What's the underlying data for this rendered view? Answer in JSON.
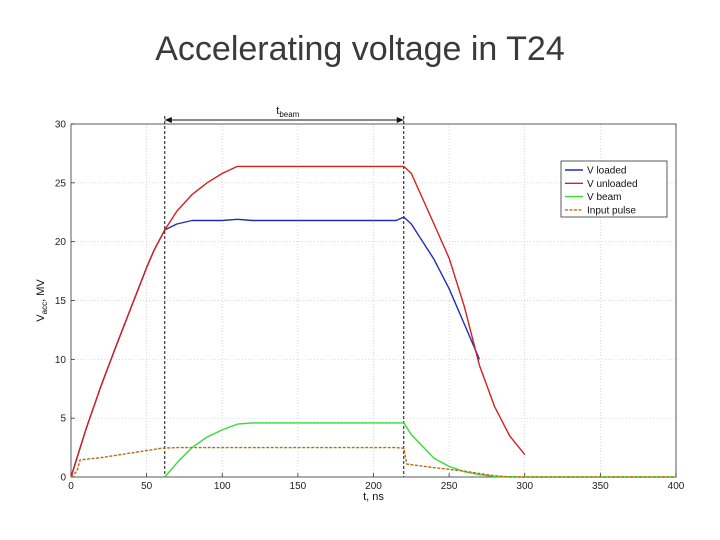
{
  "slide": {
    "title": "Accelerating voltage in T24"
  },
  "chart_data": {
    "type": "line",
    "xlabel": "t, ns",
    "ylabel": {
      "main": "V",
      "sub": "acc",
      "rest": ", MV"
    },
    "xlim": [
      0,
      400
    ],
    "ylim": [
      0,
      30
    ],
    "xticks": [
      0,
      50,
      100,
      150,
      200,
      250,
      300,
      350,
      400
    ],
    "yticks": [
      0,
      5,
      10,
      15,
      20,
      25,
      30
    ],
    "grid": true,
    "legend_position": "top-right",
    "beam_window": {
      "start": 62,
      "end": 220,
      "label": {
        "main": "t",
        "sub": "beam"
      }
    },
    "series": [
      {
        "name": "V loaded",
        "color": "#1f2fb5",
        "x": [
          0,
          10,
          20,
          30,
          40,
          50,
          55,
          62,
          70,
          80,
          100,
          110,
          120,
          150,
          200,
          215,
          220,
          225,
          240,
          250,
          260,
          270
        ],
        "y": [
          0,
          4.1,
          7.8,
          11.2,
          14.5,
          17.8,
          19.3,
          21.0,
          21.5,
          21.8,
          21.8,
          21.9,
          21.8,
          21.8,
          21.8,
          21.8,
          22.1,
          21.5,
          18.5,
          16.0,
          13.0,
          10.0
        ]
      },
      {
        "name": "V unloaded",
        "color": "#d42020",
        "x": [
          0,
          10,
          20,
          30,
          40,
          50,
          55,
          62,
          70,
          80,
          90,
          100,
          110,
          120,
          150,
          200,
          215,
          220,
          225,
          240,
          250,
          260,
          270,
          280,
          290,
          300
        ],
        "y": [
          0,
          4.1,
          7.8,
          11.2,
          14.5,
          17.8,
          19.3,
          21.0,
          22.6,
          24.0,
          25.0,
          25.8,
          26.4,
          26.4,
          26.4,
          26.4,
          26.4,
          26.4,
          25.8,
          21.5,
          18.6,
          14.5,
          9.5,
          6.0,
          3.5,
          1.9
        ]
      },
      {
        "name": "V beam",
        "color": "#33dd33",
        "x": [
          62,
          70,
          80,
          90,
          100,
          110,
          120,
          150,
          200,
          215,
          220,
          225,
          240,
          250,
          260,
          270,
          280,
          300,
          400
        ],
        "y": [
          0,
          1.2,
          2.5,
          3.4,
          4.0,
          4.5,
          4.6,
          4.6,
          4.6,
          4.6,
          4.6,
          3.6,
          1.6,
          0.9,
          0.45,
          0.2,
          0.05,
          0,
          0
        ]
      },
      {
        "name": "Input pulse",
        "color": "#c06a10",
        "dashed": true,
        "x": [
          0,
          4,
          6,
          20,
          40,
          60,
          70,
          100,
          150,
          200,
          215,
          220,
          222,
          240,
          260,
          270,
          280,
          290,
          400
        ],
        "y": [
          0,
          0.5,
          1.45,
          1.65,
          2.05,
          2.45,
          2.5,
          2.5,
          2.5,
          2.5,
          2.5,
          2.45,
          1.1,
          0.8,
          0.5,
          0.3,
          0.1,
          0,
          0
        ]
      }
    ]
  }
}
